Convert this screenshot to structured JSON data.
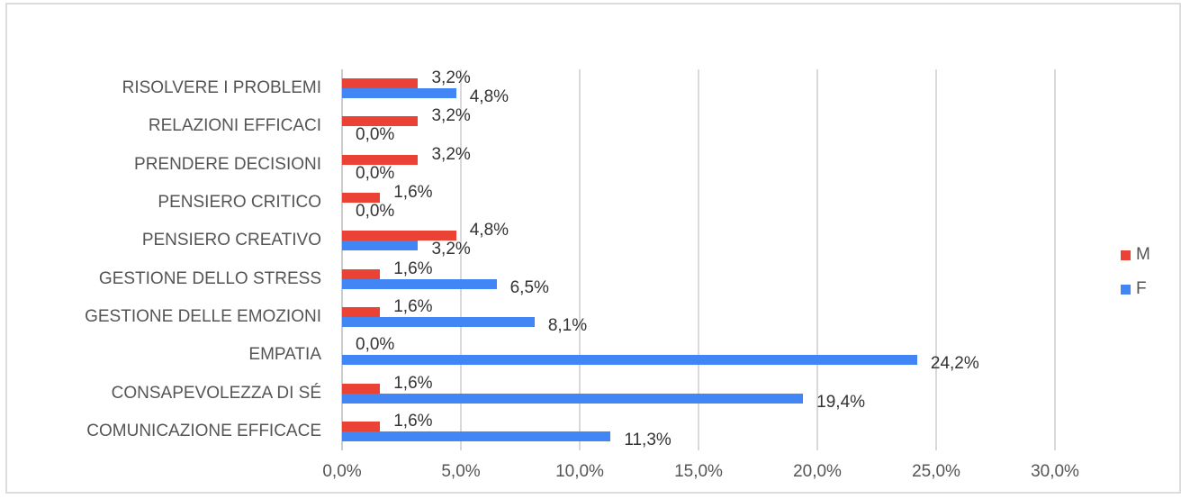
{
  "chart_data": {
    "type": "bar",
    "orientation": "horizontal",
    "title": "",
    "xlabel": "",
    "ylabel": "",
    "xlim": [
      0,
      30
    ],
    "x_ticks": [
      "0,0%",
      "5,0%",
      "10,0%",
      "15,0%",
      "20,0%",
      "25,0%",
      "30,0%"
    ],
    "grid": true,
    "legend_position": "right",
    "categories": [
      "RISOLVERE I PROBLEMI",
      "RELAZIONI EFFICACI",
      "PRENDERE DECISIONI",
      "PENSIERO CRITICO",
      "PENSIERO CREATIVO",
      "GESTIONE DELLO STRESS",
      "GESTIONE DELLE EMOZIONI",
      "EMPATIA",
      "CONSAPEVOLEZZA DI SÉ",
      "COMUNICAZIONE EFFICACE"
    ],
    "series": [
      {
        "name": "M",
        "color": "#ea4335",
        "values": [
          3.2,
          3.2,
          3.2,
          1.6,
          4.8,
          1.6,
          1.6,
          0.0,
          1.6,
          1.6
        ],
        "labels": [
          "3,2%",
          "3,2%",
          "3,2%",
          "1,6%",
          "4,8%",
          "1,6%",
          "1,6%",
          "0,0%",
          "1,6%",
          "1,6%"
        ]
      },
      {
        "name": "F",
        "color": "#4285f4",
        "values": [
          4.8,
          0.0,
          0.0,
          0.0,
          3.2,
          6.5,
          8.1,
          24.2,
          19.4,
          11.3
        ],
        "labels": [
          "4,8%",
          "0,0%",
          "0,0%",
          "0,0%",
          "3,2%",
          "6,5%",
          "8,1%",
          "24,2%",
          "19,4%",
          "11,3%"
        ]
      }
    ]
  },
  "legend": {
    "items": [
      {
        "label": "M",
        "color": "#ea4335"
      },
      {
        "label": "F",
        "color": "#4285f4"
      }
    ]
  }
}
